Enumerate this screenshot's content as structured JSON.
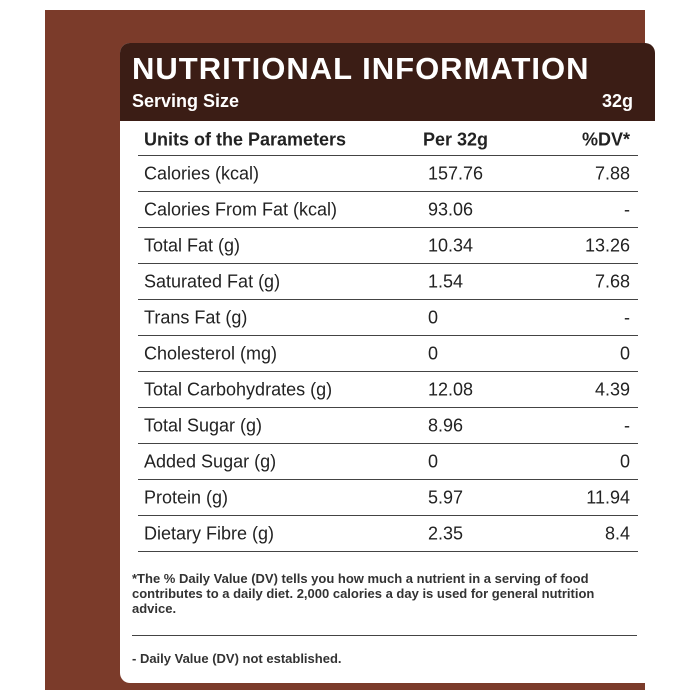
{
  "header": {
    "title": "NUTRITIONAL INFORMATION",
    "serving_label": "Serving Size",
    "serving_value": "32g"
  },
  "table": {
    "columns": [
      "Units of the Parameters",
      "Per 32g",
      "%DV*"
    ],
    "rows": [
      [
        "Calories (kcal)",
        "157.76",
        "7.88"
      ],
      [
        "Calories From Fat (kcal)",
        "93.06",
        "-"
      ],
      [
        "Total Fat (g)",
        "10.34",
        "13.26"
      ],
      [
        "Saturated Fat (g)",
        "1.54",
        "7.68"
      ],
      [
        "Trans Fat (g)",
        "0",
        "-"
      ],
      [
        "Cholesterol (mg)",
        "0",
        "0"
      ],
      [
        "Total Carbohydrates (g)",
        "12.08",
        "4.39"
      ],
      [
        "Total Sugar (g)",
        "8.96",
        "-"
      ],
      [
        "Added Sugar (g)",
        "0",
        "0"
      ],
      [
        "Protein (g)",
        "5.97",
        "11.94"
      ],
      [
        "Dietary Fibre (g)",
        "2.35",
        "8.4"
      ]
    ]
  },
  "footnotes": [
    "*The % Daily Value (DV) tells you how much a nutrient in a serving of food contributes to a daily diet. 2,000 calories a day is used for general nutrition advice.",
    "- Daily Value (DV) not established."
  ]
}
